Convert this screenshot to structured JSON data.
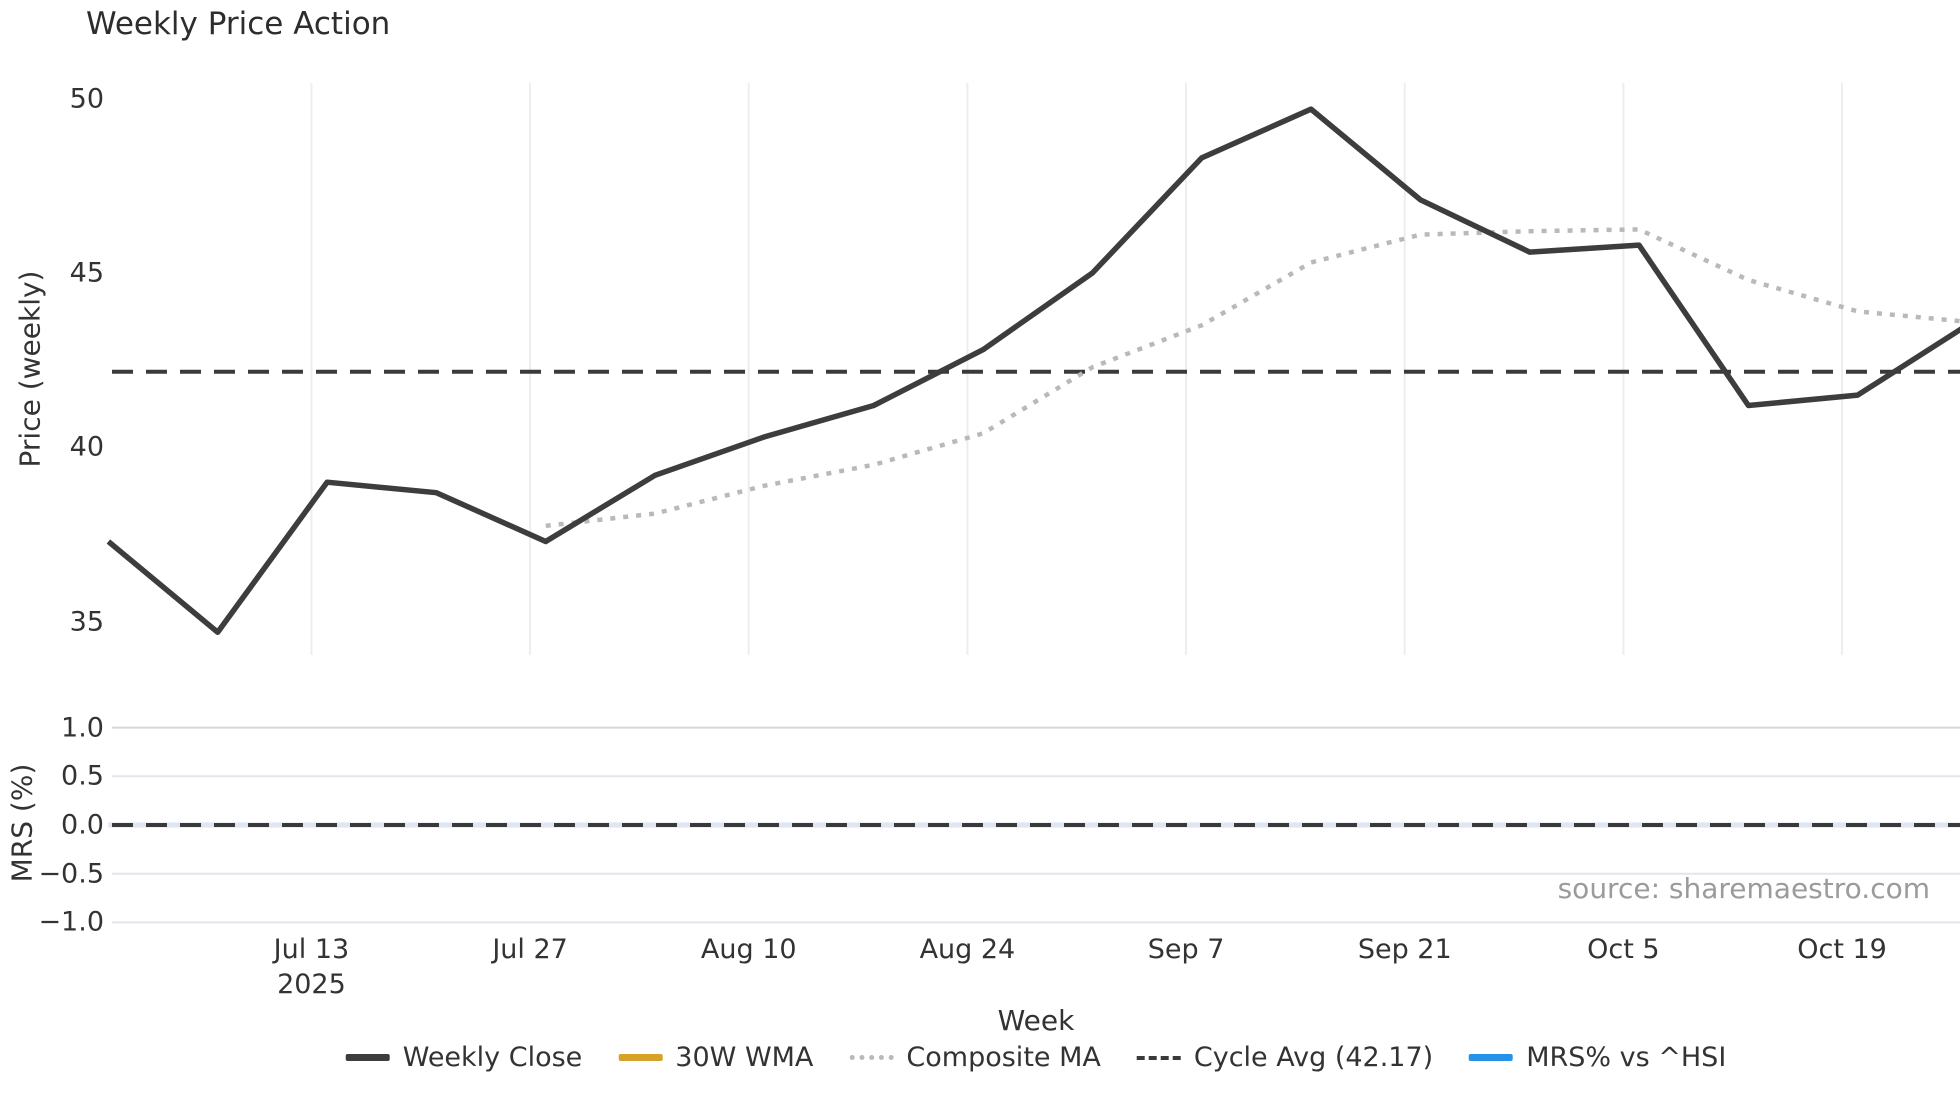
{
  "title": "Weekly Price Action",
  "source_text": "source: sharemaestro.com",
  "price_panel": {
    "ylabel": "Price (weekly)",
    "yticks": [
      "50",
      "45",
      "40",
      "35"
    ],
    "ytick_values": [
      50,
      45,
      40,
      35
    ]
  },
  "mrs_panel": {
    "ylabel": "MRS (%)",
    "yticks": [
      "1.0",
      "0.5",
      "0.0",
      "−0.5",
      "−1.0"
    ],
    "ytick_values": [
      1.0,
      0.5,
      0.0,
      -0.5,
      -1.0
    ]
  },
  "x_axis": {
    "label": "Week",
    "ticks": [
      "Jul 13",
      "Jul 27",
      "Aug 10",
      "Aug 24",
      "Sep 7",
      "Sep 21",
      "Oct 5",
      "Oct 19"
    ],
    "first_tick_year": "2025"
  },
  "legend": [
    {
      "label": "Weekly Close",
      "color": "#3d3d3d",
      "style": "solid-thick"
    },
    {
      "label": "30W WMA",
      "color": "#d7a228",
      "style": "solid-thick"
    },
    {
      "label": "Composite MA",
      "color": "#b9b9b9",
      "style": "dotted"
    },
    {
      "label": "Cycle Avg (42.17)",
      "color": "#3a3a3a",
      "style": "dashed"
    },
    {
      "label": "MRS% vs ^HSI",
      "color": "#2492e8",
      "style": "solid-thick"
    }
  ],
  "colors": {
    "grid_vertical": "#ededf2",
    "grid_horizontal": "#e4e4ec",
    "grid_horizontal_strong": "#d6d6dc",
    "mrs_zero_under": "#dde6f2",
    "background": "#ffffff"
  },
  "chart_data": [
    {
      "type": "line",
      "title": "Weekly Price Action",
      "xlabel": "Week",
      "ylabel": "Price (weekly)",
      "x": [
        "Jun 30",
        "Jul 7",
        "Jul 14",
        "Jul 21",
        "Jul 28",
        "Aug 4",
        "Aug 11",
        "Aug 18",
        "Aug 25",
        "Sep 1",
        "Sep 8",
        "Sep 15",
        "Sep 22",
        "Sep 29",
        "Oct 6",
        "Oct 13",
        "Oct 20",
        "Oct 27"
      ],
      "series": [
        {
          "name": "Weekly Close",
          "values": [
            37.3,
            34.7,
            39.0,
            38.7,
            37.3,
            39.2,
            40.3,
            41.2,
            42.8,
            45.0,
            48.3,
            49.7,
            47.1,
            45.6,
            45.8,
            41.2,
            41.5,
            43.5
          ]
        },
        {
          "name": "30W WMA",
          "values": []
        },
        {
          "name": "Composite MA",
          "values": [
            null,
            null,
            null,
            null,
            37.75,
            38.1,
            38.9,
            39.5,
            40.4,
            42.3,
            43.5,
            45.3,
            46.1,
            46.2,
            46.25,
            44.8,
            43.9,
            43.6
          ]
        }
      ],
      "cycle_avg": 42.17,
      "ylim": [
        33.9,
        50.5
      ],
      "xtick_labels": [
        "Jul 13",
        "Jul 27",
        "Aug 10",
        "Aug 24",
        "Sep 7",
        "Sep 21",
        "Oct 5",
        "Oct 19"
      ],
      "grid": "vertical-only",
      "legend_position": "bottom-center"
    },
    {
      "type": "line",
      "ylabel": "MRS (%)",
      "x": [
        "Jun 30",
        "Jul 7",
        "Jul 14",
        "Jul 21",
        "Jul 28",
        "Aug 4",
        "Aug 11",
        "Aug 18",
        "Aug 25",
        "Sep 1",
        "Sep 8",
        "Sep 15",
        "Sep 22",
        "Sep 29",
        "Oct 6",
        "Oct 13",
        "Oct 20",
        "Oct 27"
      ],
      "series": [
        {
          "name": "MRS% vs ^HSI",
          "values": [
            0,
            0,
            0,
            0,
            0,
            0,
            0,
            0,
            0,
            0,
            0,
            0,
            0,
            0,
            0,
            0,
            0,
            0
          ]
        }
      ],
      "zero_line_dashed": true,
      "ylim": [
        -1.2,
        1.2
      ],
      "grid": "horizontal-only"
    }
  ]
}
